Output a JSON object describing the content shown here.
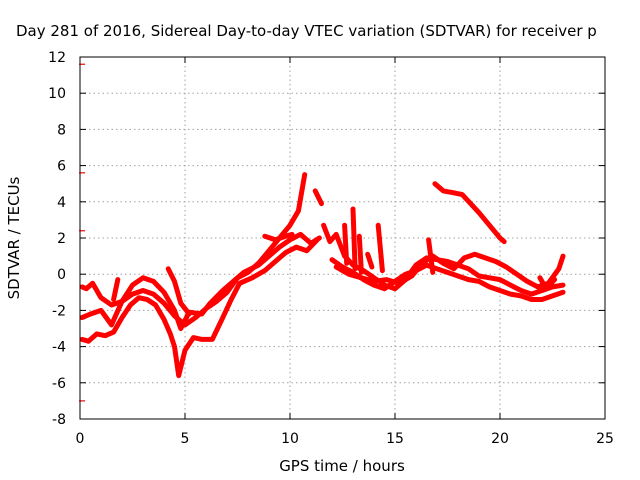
{
  "chart_data": {
    "type": "scatter",
    "title": "Day 281 of 2016, Sidereal Day-to-day VTEC variation (SDTVAR) for receiver p",
    "xlabel": "GPS time / hours",
    "ylabel": "SDTVAR / TECUs",
    "xlim": [
      0,
      25
    ],
    "ylim": [
      -8,
      12
    ],
    "xticks": [
      0,
      5,
      10,
      15,
      20,
      25
    ],
    "yticks": [
      -8,
      -6,
      -4,
      -2,
      0,
      2,
      4,
      6,
      8,
      10,
      12
    ],
    "grid": true,
    "color": "#ff0000",
    "series": [
      {
        "values": [
          [
            0.1,
            -0.7
          ],
          [
            0.3,
            -0.8
          ],
          [
            0.6,
            -0.5
          ],
          [
            1.0,
            -1.3
          ],
          [
            1.5,
            -1.7
          ],
          [
            2.0,
            -1.5
          ],
          [
            2.5,
            -1.1
          ],
          [
            3.0,
            -0.9
          ],
          [
            3.5,
            -1.1
          ],
          [
            4.0,
            -1.6
          ],
          [
            4.5,
            -2.3
          ],
          [
            5.0,
            -2.8
          ],
          [
            5.5,
            -2.4
          ],
          [
            6.0,
            -1.9
          ],
          [
            6.5,
            -1.5
          ],
          [
            7.0,
            -1.0
          ],
          [
            7.5,
            -0.2
          ],
          [
            8.0,
            0.1
          ],
          [
            8.5,
            0.6
          ],
          [
            9.0,
            1.3
          ],
          [
            9.5,
            2.0
          ],
          [
            10.0,
            2.7
          ],
          [
            10.4,
            3.5
          ],
          [
            10.7,
            5.5
          ]
        ]
      },
      {
        "values": [
          [
            0.1,
            -2.4
          ],
          [
            0.5,
            -2.2
          ],
          [
            1.0,
            -2.0
          ],
          [
            1.5,
            -2.8
          ],
          [
            2.0,
            -1.5
          ],
          [
            2.5,
            -0.6
          ],
          [
            3.0,
            -0.2
          ],
          [
            3.5,
            -0.4
          ],
          [
            4.0,
            -1.0
          ],
          [
            4.5,
            -2.0
          ],
          [
            4.8,
            -3.0
          ],
          [
            5.2,
            -2.1
          ],
          [
            5.8,
            -2.2
          ],
          [
            6.2,
            -1.6
          ],
          [
            6.8,
            -0.9
          ],
          [
            7.3,
            -0.4
          ],
          [
            7.8,
            0.1
          ],
          [
            8.5,
            0.5
          ],
          [
            9.0,
            1.0
          ],
          [
            9.5,
            1.5
          ],
          [
            10.0,
            1.9
          ],
          [
            10.5,
            2.2
          ],
          [
            11.0,
            1.7
          ],
          [
            11.4,
            2.0
          ]
        ]
      },
      {
        "values": [
          [
            0.1,
            -3.6
          ],
          [
            0.4,
            -3.7
          ],
          [
            0.8,
            -3.3
          ],
          [
            1.2,
            -3.4
          ],
          [
            1.6,
            -3.2
          ],
          [
            2.0,
            -2.4
          ],
          [
            2.4,
            -1.7
          ],
          [
            2.8,
            -1.3
          ],
          [
            3.2,
            -1.4
          ],
          [
            3.6,
            -1.7
          ],
          [
            4.0,
            -2.5
          ],
          [
            4.3,
            -3.3
          ],
          [
            4.5,
            -4.0
          ],
          [
            4.7,
            -5.6
          ],
          [
            5.0,
            -4.2
          ],
          [
            5.4,
            -3.5
          ],
          [
            5.8,
            -3.6
          ],
          [
            6.3,
            -3.6
          ],
          [
            6.8,
            -2.4
          ],
          [
            7.2,
            -1.4
          ],
          [
            7.6,
            -0.5
          ],
          [
            8.2,
            -0.2
          ],
          [
            8.8,
            0.2
          ],
          [
            9.3,
            0.7
          ],
          [
            9.8,
            1.2
          ],
          [
            10.3,
            1.5
          ],
          [
            10.8,
            1.3
          ],
          [
            11.3,
            1.9
          ]
        ]
      },
      {
        "values": [
          [
            1.6,
            -1.4
          ],
          [
            1.8,
            -0.3
          ]
        ]
      },
      {
        "values": [
          [
            4.2,
            0.3
          ],
          [
            4.5,
            -0.4
          ],
          [
            4.8,
            -1.6
          ],
          [
            5.2,
            -2.2
          ]
        ]
      },
      {
        "values": [
          [
            8.8,
            2.1
          ],
          [
            9.3,
            1.9
          ],
          [
            9.8,
            2.1
          ],
          [
            10.1,
            2.2
          ]
        ]
      },
      {
        "values": [
          [
            11.2,
            4.6
          ],
          [
            11.5,
            3.9
          ]
        ]
      },
      {
        "values": [
          [
            11.6,
            2.7
          ],
          [
            11.9,
            1.8
          ],
          [
            12.2,
            2.2
          ],
          [
            12.6,
            1.0
          ],
          [
            13.0,
            0.5
          ],
          [
            13.5,
            0.2
          ],
          [
            14.0,
            -0.2
          ],
          [
            14.5,
            -0.6
          ],
          [
            15.0,
            -0.8
          ],
          [
            15.5,
            -0.3
          ],
          [
            16.0,
            0.5
          ],
          [
            16.5,
            0.9
          ],
          [
            17.0,
            0.8
          ],
          [
            17.5,
            0.7
          ],
          [
            18.0,
            0.5
          ],
          [
            18.5,
            0.3
          ],
          [
            19.0,
            -0.1
          ],
          [
            19.5,
            -0.2
          ],
          [
            20.0,
            -0.3
          ],
          [
            20.5,
            -0.6
          ],
          [
            21.0,
            -0.9
          ],
          [
            21.5,
            -1.1
          ],
          [
            22.0,
            -0.9
          ],
          [
            22.5,
            -0.7
          ],
          [
            23.0,
            -0.6
          ]
        ]
      },
      {
        "values": [
          [
            12.0,
            0.8
          ],
          [
            12.5,
            0.4
          ],
          [
            13.0,
            0.1
          ],
          [
            13.5,
            -0.3
          ],
          [
            14.0,
            -0.6
          ],
          [
            14.5,
            -0.8
          ],
          [
            15.0,
            -0.4
          ],
          [
            15.5,
            0.0
          ],
          [
            16.0,
            0.2
          ],
          [
            16.5,
            0.5
          ],
          [
            17.0,
            0.3
          ],
          [
            17.5,
            0.1
          ],
          [
            18.0,
            -0.1
          ],
          [
            18.5,
            -0.3
          ],
          [
            19.0,
            -0.4
          ],
          [
            19.5,
            -0.7
          ],
          [
            20.0,
            -0.9
          ],
          [
            20.5,
            -1.1
          ],
          [
            21.0,
            -1.2
          ],
          [
            21.5,
            -1.4
          ],
          [
            22.0,
            -1.4
          ],
          [
            22.5,
            -1.2
          ],
          [
            23.0,
            -1.0
          ]
        ]
      },
      {
        "values": [
          [
            12.2,
            0.4
          ],
          [
            12.8,
            0.0
          ],
          [
            13.4,
            -0.2
          ],
          [
            14.0,
            -0.4
          ],
          [
            14.6,
            -0.3
          ],
          [
            15.2,
            -0.5
          ],
          [
            15.8,
            -0.1
          ],
          [
            16.3,
            0.6
          ],
          [
            16.8,
            1.0
          ],
          [
            17.3,
            0.6
          ],
          [
            17.8,
            0.3
          ],
          [
            18.3,
            0.9
          ],
          [
            18.8,
            1.1
          ],
          [
            19.3,
            0.9
          ],
          [
            19.8,
            0.7
          ],
          [
            20.3,
            0.4
          ],
          [
            20.8,
            0.0
          ],
          [
            21.3,
            -0.4
          ],
          [
            21.8,
            -0.7
          ],
          [
            22.3,
            -0.5
          ],
          [
            22.8,
            0.3
          ],
          [
            23.0,
            1.0
          ]
        ]
      },
      {
        "values": [
          [
            12.6,
            2.7
          ],
          [
            12.7,
            0.6
          ]
        ]
      },
      {
        "values": [
          [
            13.0,
            3.6
          ],
          [
            13.1,
            0.3
          ]
        ]
      },
      {
        "values": [
          [
            13.3,
            2.1
          ],
          [
            13.4,
            0.1
          ]
        ]
      },
      {
        "values": [
          [
            13.7,
            1.1
          ],
          [
            13.9,
            0.4
          ]
        ]
      },
      {
        "values": [
          [
            14.2,
            2.7
          ],
          [
            14.4,
            0.2
          ]
        ]
      },
      {
        "values": [
          [
            16.6,
            1.9
          ],
          [
            16.8,
            0.1
          ]
        ]
      },
      {
        "values": [
          [
            16.9,
            5.0
          ],
          [
            17.3,
            4.6
          ],
          [
            17.8,
            4.5
          ],
          [
            18.2,
            4.4
          ],
          [
            18.6,
            3.9
          ],
          [
            19.0,
            3.4
          ],
          [
            19.5,
            2.7
          ],
          [
            20.0,
            2.0
          ],
          [
            20.2,
            1.8
          ]
        ]
      },
      {
        "values": [
          [
            21.9,
            -0.2
          ],
          [
            22.2,
            -0.8
          ],
          [
            22.6,
            -0.3
          ]
        ]
      }
    ],
    "outliers": [
      [
        0.1,
        11.6
      ],
      [
        0.1,
        5.6
      ],
      [
        0.1,
        2.4
      ],
      [
        0.1,
        -7.0
      ]
    ]
  }
}
